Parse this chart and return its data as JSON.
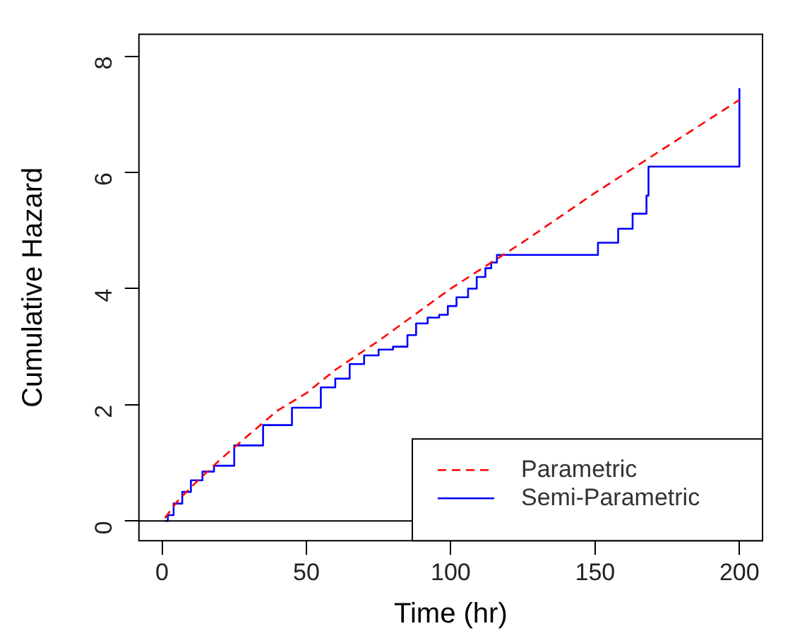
{
  "chart_data": {
    "type": "line",
    "xlabel": "Time (hr)",
    "ylabel": "Cumulative Hazard",
    "xlim": [
      -8,
      208
    ],
    "xticks": [
      0,
      50,
      100,
      150,
      200
    ],
    "ylim": [
      -0.34,
      8.38
    ],
    "yticks": [
      0,
      2,
      4,
      6,
      8
    ],
    "grid": false,
    "legend": "bottom right",
    "ref_lines": [
      {
        "axis": "y",
        "value": 0,
        "color": "#000000"
      }
    ],
    "series": [
      {
        "name": "Parametric",
        "color": "#ff0000",
        "line_style": "dashed",
        "x": [
          1,
          5,
          10,
          20,
          30,
          40,
          50,
          60,
          75,
          100,
          125,
          150,
          175,
          200
        ],
        "values": [
          0.05,
          0.32,
          0.58,
          1.05,
          1.48,
          1.9,
          2.2,
          2.6,
          3.1,
          4.0,
          4.8,
          5.65,
          6.45,
          7.25
        ]
      },
      {
        "name": "Semi-Parametric",
        "type": "step",
        "color": "#0000ff",
        "line_style": "solid",
        "x": [
          1,
          2,
          4,
          7,
          10,
          14,
          18,
          25,
          35,
          45,
          55,
          60,
          65,
          70,
          75,
          80,
          85,
          88,
          92,
          96,
          99,
          102,
          106,
          109,
          112,
          114,
          116,
          151,
          158,
          163,
          167.8,
          168.5,
          200
        ],
        "values": [
          0,
          0.1,
          0.3,
          0.5,
          0.7,
          0.85,
          0.95,
          1.3,
          1.65,
          1.95,
          2.3,
          2.45,
          2.7,
          2.85,
          2.95,
          3.0,
          3.2,
          3.4,
          3.5,
          3.55,
          3.7,
          3.85,
          4.0,
          4.2,
          4.35,
          4.45,
          4.58,
          4.79,
          5.03,
          5.29,
          5.6,
          6.1,
          7.45
        ]
      }
    ]
  }
}
